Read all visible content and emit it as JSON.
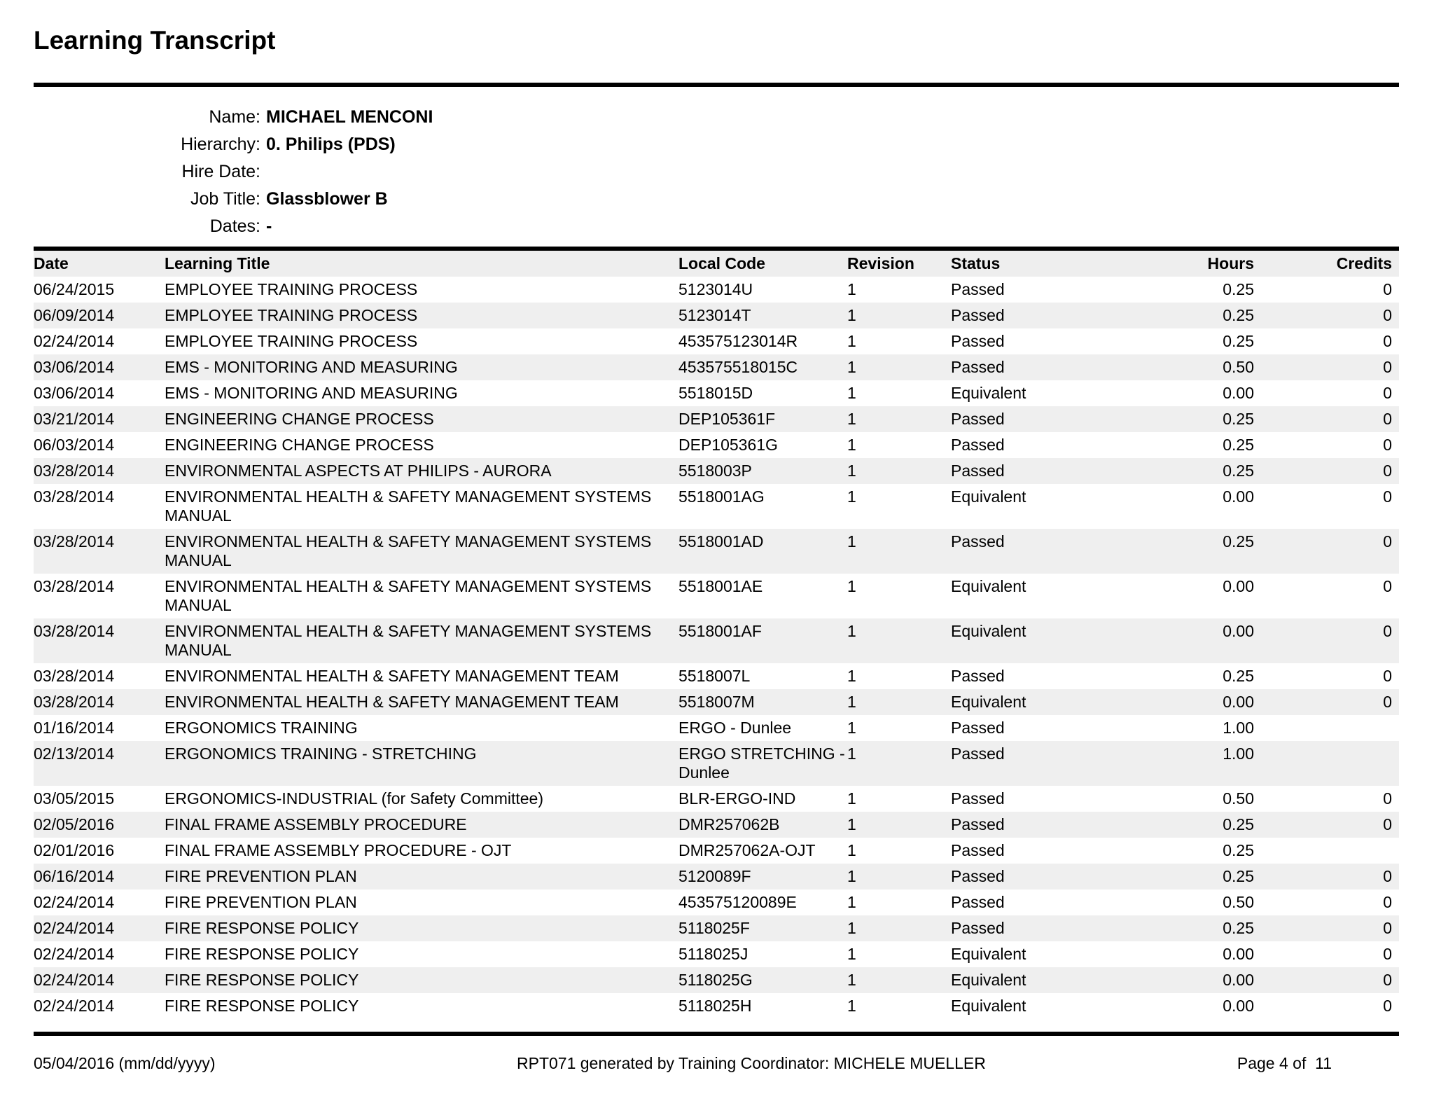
{
  "title": "Learning Transcript",
  "info": {
    "rows": [
      {
        "label": "Name:",
        "value": "MICHAEL MENCONI"
      },
      {
        "label": "Hierarchy:",
        "value": "0. Philips (PDS)"
      },
      {
        "label": "Hire Date:",
        "value": ""
      },
      {
        "label": "Job Title:",
        "value": "Glassblower B"
      },
      {
        "label": "Dates:",
        "value": "-"
      }
    ]
  },
  "table": {
    "columns": [
      "Date",
      "Learning Title",
      "Local Code",
      "Revision",
      "Status",
      "Hours",
      "Credits"
    ],
    "rows": [
      [
        "06/24/2015",
        "EMPLOYEE TRAINING PROCESS",
        "5123014U",
        "1",
        "Passed",
        "0.25",
        "0"
      ],
      [
        "06/09/2014",
        "EMPLOYEE TRAINING PROCESS",
        "5123014T",
        "1",
        "Passed",
        "0.25",
        "0"
      ],
      [
        "02/24/2014",
        "EMPLOYEE TRAINING PROCESS",
        "453575123014R",
        "1",
        "Passed",
        "0.25",
        "0"
      ],
      [
        "03/06/2014",
        "EMS - MONITORING AND MEASURING",
        "453575518015C",
        "1",
        "Passed",
        "0.50",
        "0"
      ],
      [
        "03/06/2014",
        "EMS - MONITORING AND MEASURING",
        "5518015D",
        "1",
        "Equivalent",
        "0.00",
        "0"
      ],
      [
        "03/21/2014",
        "ENGINEERING CHANGE PROCESS",
        "DEP105361F",
        "1",
        "Passed",
        "0.25",
        "0"
      ],
      [
        "06/03/2014",
        "ENGINEERING CHANGE PROCESS",
        "DEP105361G",
        "1",
        "Passed",
        "0.25",
        "0"
      ],
      [
        "03/28/2014",
        "ENVIRONMENTAL ASPECTS AT PHILIPS - AURORA",
        "5518003P",
        "1",
        "Passed",
        "0.25",
        "0"
      ],
      [
        "03/28/2014",
        "ENVIRONMENTAL HEALTH & SAFETY MANAGEMENT SYSTEMS MANUAL",
        "5518001AG",
        "1",
        "Equivalent",
        "0.00",
        "0"
      ],
      [
        "03/28/2014",
        "ENVIRONMENTAL HEALTH & SAFETY MANAGEMENT SYSTEMS MANUAL",
        "5518001AD",
        "1",
        "Passed",
        "0.25",
        "0"
      ],
      [
        "03/28/2014",
        "ENVIRONMENTAL HEALTH & SAFETY MANAGEMENT SYSTEMS MANUAL",
        "5518001AE",
        "1",
        "Equivalent",
        "0.00",
        "0"
      ],
      [
        "03/28/2014",
        "ENVIRONMENTAL HEALTH & SAFETY MANAGEMENT SYSTEMS MANUAL",
        "5518001AF",
        "1",
        "Equivalent",
        "0.00",
        "0"
      ],
      [
        "03/28/2014",
        "ENVIRONMENTAL HEALTH & SAFETY MANAGEMENT TEAM",
        "5518007L",
        "1",
        "Passed",
        "0.25",
        "0"
      ],
      [
        "03/28/2014",
        "ENVIRONMENTAL HEALTH & SAFETY MANAGEMENT TEAM",
        "5518007M",
        "1",
        "Equivalent",
        "0.00",
        "0"
      ],
      [
        "01/16/2014",
        "ERGONOMICS TRAINING",
        "ERGO - Dunlee",
        "1",
        "Passed",
        "1.00",
        ""
      ],
      [
        "02/13/2014",
        "ERGONOMICS TRAINING - STRETCHING",
        "ERGO STRETCHING - Dunlee",
        "1",
        "Passed",
        "1.00",
        ""
      ],
      [
        "03/05/2015",
        "ERGONOMICS-INDUSTRIAL (for Safety Committee)",
        "BLR-ERGO-IND",
        "1",
        "Passed",
        "0.50",
        "0"
      ],
      [
        "02/05/2016",
        "FINAL FRAME ASSEMBLY PROCEDURE",
        "DMR257062B",
        "1",
        "Passed",
        "0.25",
        "0"
      ],
      [
        "02/01/2016",
        "FINAL FRAME ASSEMBLY PROCEDURE - OJT",
        "DMR257062A-OJT",
        "1",
        "Passed",
        "0.25",
        ""
      ],
      [
        "06/16/2014",
        "FIRE PREVENTION PLAN",
        "5120089F",
        "1",
        "Passed",
        "0.25",
        "0"
      ],
      [
        "02/24/2014",
        "FIRE PREVENTION PLAN",
        "453575120089E",
        "1",
        "Passed",
        "0.50",
        "0"
      ],
      [
        "02/24/2014",
        "FIRE RESPONSE POLICY",
        "5118025F",
        "1",
        "Passed",
        "0.25",
        "0"
      ],
      [
        "02/24/2014",
        "FIRE RESPONSE POLICY",
        "5118025J",
        "1",
        "Equivalent",
        "0.00",
        "0"
      ],
      [
        "02/24/2014",
        "FIRE RESPONSE POLICY",
        "5118025G",
        "1",
        "Equivalent",
        "0.00",
        "0"
      ],
      [
        "02/24/2014",
        "FIRE RESPONSE POLICY",
        "5118025H",
        "1",
        "Equivalent",
        "0.00",
        "0"
      ]
    ]
  },
  "footer": {
    "date": "05/04/2016 (mm/dd/yyyy)",
    "center": "RPT071 generated by Training Coordinator: MICHELE MUELLER",
    "page": "Page 4 of  11"
  }
}
